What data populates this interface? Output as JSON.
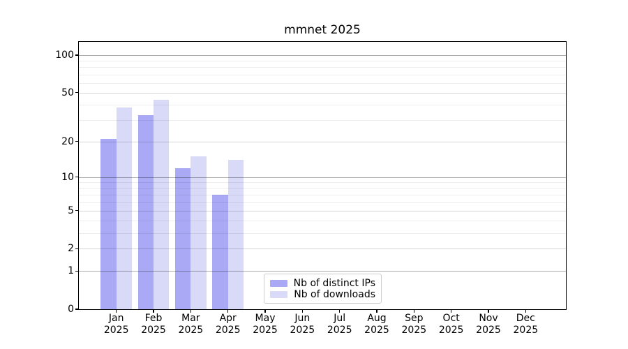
{
  "chart_data": {
    "type": "bar",
    "title": "mmnet 2025",
    "months": [
      "Jan",
      "Feb",
      "Mar",
      "Apr",
      "May",
      "Jun",
      "Jul",
      "Aug",
      "Sep",
      "Oct",
      "Nov",
      "Dec"
    ],
    "year": "2025",
    "series": [
      {
        "name": "Nb of distinct IPs",
        "color": "#a9a9f5",
        "values": [
          21,
          33,
          12,
          7,
          0,
          0,
          0,
          0,
          0,
          0,
          0,
          0
        ]
      },
      {
        "name": "Nb of downloads",
        "color": "#d9d9f8",
        "values": [
          38,
          44,
          15,
          14,
          0,
          0,
          0,
          0,
          0,
          0,
          0,
          0
        ]
      }
    ],
    "yscale": "log1p",
    "ylim": [
      0,
      127
    ],
    "y_major_ticks": [
      0,
      1,
      2,
      5,
      10,
      20,
      50,
      100
    ],
    "y_decade_ticks": [
      1,
      10,
      100
    ],
    "y_minor_ticks": [
      3,
      4,
      6,
      7,
      8,
      9,
      30,
      40,
      60,
      70,
      80,
      90
    ],
    "grid": "on",
    "legend": {
      "position": "lower center",
      "entries": [
        "Nb of distinct IPs",
        "Nb of downloads"
      ]
    },
    "colors": {
      "spine": "#000000",
      "background": "#ffffff",
      "grid_decade": "rgba(0,0,0,0.33)",
      "grid_mid": "rgba(0,0,0,0.16)",
      "grid_minor": "rgba(0,0,0,0.07)"
    }
  }
}
